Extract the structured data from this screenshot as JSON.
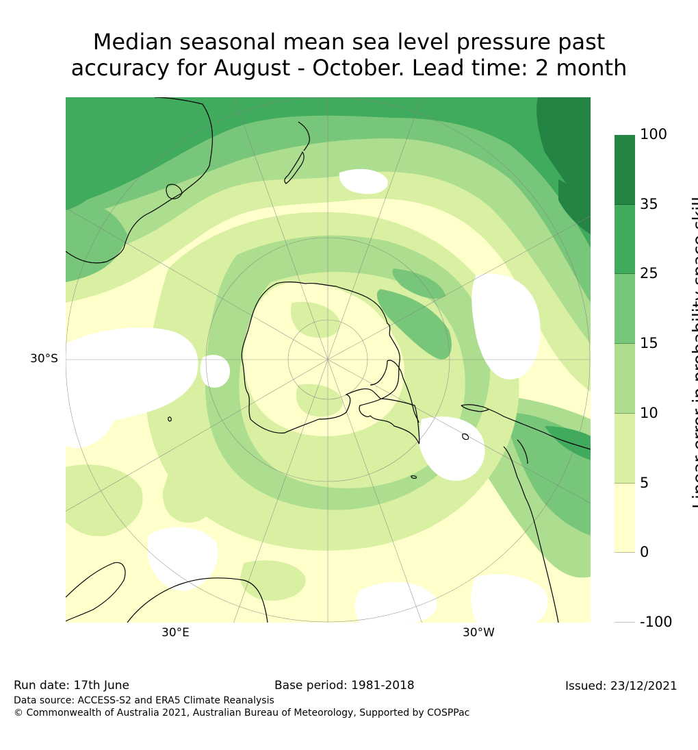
{
  "title": {
    "line1": "Median seasonal mean sea level pressure past",
    "line2": "accuracy for August - October. Lead time: 2 month"
  },
  "map": {
    "projection": "south polar stereographic",
    "lat_labels": {
      "lat_30s": "30°S",
      "lon_30e": "30°E",
      "lon_30w": "30°W"
    }
  },
  "colorbar": {
    "label": "Linear error in probability space skill score (%)",
    "ticks": [
      "100",
      "35",
      "25",
      "15",
      "10",
      "5",
      "0",
      "-100"
    ],
    "bins": [
      {
        "range": "35 to 100",
        "color": "#238443"
      },
      {
        "range": "25 to 35",
        "color": "#41ab5d"
      },
      {
        "range": "15 to 25",
        "color": "#78c679"
      },
      {
        "range": "10 to 15",
        "color": "#addd8e"
      },
      {
        "range": "5 to 10",
        "color": "#d9f0a3"
      },
      {
        "range": "0 to 5",
        "color": "#ffffcc"
      },
      {
        "range": "-100 to 0",
        "color": "#ffffff"
      }
    ]
  },
  "footer": {
    "run_date": "Run date: 17th June",
    "base_period": "Base period: 1981-2018",
    "issued": "Issued: 23/12/2021",
    "data_source": "Data source: ACCESS-S2 and ERA5 Climate Reanalysis",
    "copyright": "© Commonwealth of Australia 2021, Australian Bureau of Meteorology, Supported by COSPPac"
  }
}
